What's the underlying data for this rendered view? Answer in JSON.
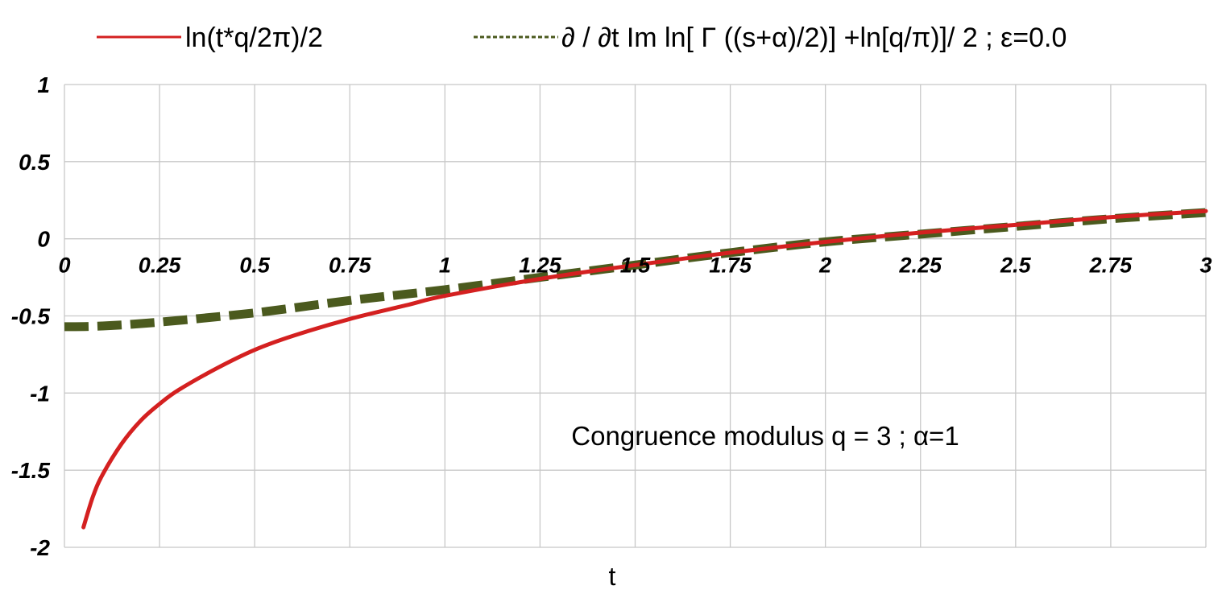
{
  "chart_data": {
    "type": "line",
    "title": "",
    "xlabel": "t",
    "ylabel": "",
    "xlim": [
      0,
      3
    ],
    "ylim": [
      -2,
      1
    ],
    "grid": true,
    "legend_position": "top",
    "x_ticks": [
      "0",
      "0.25",
      "0.5",
      "0.75",
      "1",
      "1.25",
      "1.5",
      "1.75",
      "2",
      "2.25",
      "2.5",
      "2.75",
      "3"
    ],
    "y_ticks": [
      "1",
      "0.5",
      "0",
      "-0.5",
      "-1",
      "-1.5",
      "-2"
    ],
    "annotation": "Congruence modulus q =  3 ; α=1",
    "series": [
      {
        "name": "ln(t*q/2π)/2",
        "color": "#d42020",
        "style": "solid",
        "x": [
          0.05,
          0.075,
          0.1,
          0.15,
          0.2,
          0.25,
          0.3,
          0.4,
          0.5,
          0.6,
          0.75,
          0.9,
          1.0,
          1.25,
          1.5,
          1.75,
          2.0,
          2.25,
          2.5,
          2.75,
          3.0
        ],
        "y": [
          -1.87,
          -1.67,
          -1.53,
          -1.33,
          -1.18,
          -1.07,
          -0.98,
          -0.84,
          -0.72,
          -0.63,
          -0.52,
          -0.43,
          -0.37,
          -0.26,
          -0.17,
          -0.09,
          -0.02,
          0.04,
          0.09,
          0.14,
          0.18
        ]
      },
      {
        "name": "∂ / ∂t Im ln[ Γ ((s+α)/2)] +ln[q/π)]/ 2  ;  ε=0.0",
        "color": "#4b5a1e",
        "style": "dashed",
        "x": [
          0.0,
          0.1,
          0.25,
          0.5,
          0.75,
          1.0,
          1.25,
          1.5,
          1.75,
          2.0,
          2.25,
          2.5,
          2.75,
          3.0
        ],
        "y": [
          -0.57,
          -0.565,
          -0.54,
          -0.48,
          -0.4,
          -0.33,
          -0.25,
          -0.17,
          -0.09,
          -0.02,
          0.03,
          0.08,
          0.13,
          0.17
        ]
      }
    ]
  }
}
